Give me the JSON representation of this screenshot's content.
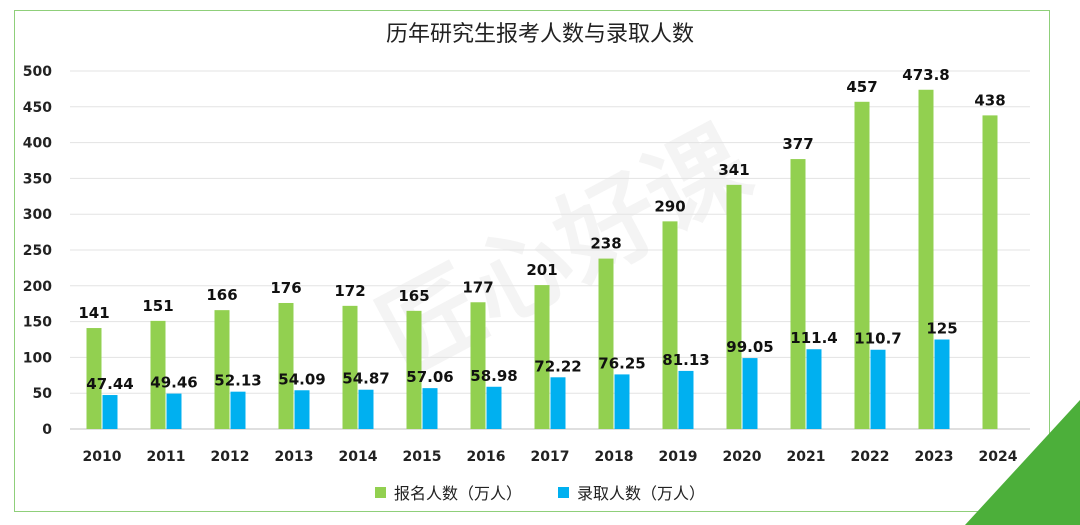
{
  "chart_data": {
    "type": "bar",
    "title": "历年研究生报考人数与录取人数",
    "categories": [
      "2010",
      "2011",
      "2012",
      "2013",
      "2014",
      "2015",
      "2016",
      "2017",
      "2018",
      "2019",
      "2020",
      "2021",
      "2022",
      "2023",
      "2024"
    ],
    "series": [
      {
        "name": "报名人数（万人）",
        "color": "#92d050",
        "values": [
          141,
          151,
          166,
          176,
          172,
          165,
          177,
          201,
          238,
          290,
          341,
          377,
          457,
          473.8,
          438
        ],
        "labels": [
          "141",
          "151",
          "166",
          "176",
          "172",
          "165",
          "177",
          "201",
          "238",
          "290",
          "341",
          "377",
          "457",
          "473.8",
          "438"
        ]
      },
      {
        "name": "录取人数（万人）",
        "color": "#00b0f0",
        "values": [
          47.44,
          49.46,
          52.13,
          54.09,
          54.87,
          57.06,
          58.98,
          72.22,
          76.25,
          81.13,
          99.05,
          111.4,
          110.7,
          125,
          null
        ],
        "labels": [
          "47.44",
          "49.46",
          "52.13",
          "54.09",
          "54.87",
          "57.06",
          "58.98",
          "72.22",
          "76.25",
          "81.13",
          "99.05",
          "111.4",
          "110.7",
          "125",
          ""
        ]
      }
    ],
    "ylim": [
      0,
      500
    ],
    "yticks": [
      "0",
      "50",
      "100",
      "150",
      "200",
      "250",
      "300",
      "350",
      "400",
      "450",
      "500"
    ],
    "grid": true,
    "legend": "bottom"
  },
  "watermark": "匠心好课",
  "colors": {
    "frame": "#8fcf7a",
    "corner": "#4caf3a"
  }
}
